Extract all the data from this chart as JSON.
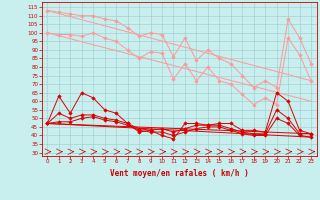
{
  "xlabel": "Vent moyen/en rafales ( km/h )",
  "xlim": [
    -0.5,
    23.5
  ],
  "ylim": [
    28,
    118
  ],
  "yticks": [
    30,
    35,
    40,
    45,
    50,
    55,
    60,
    65,
    70,
    75,
    80,
    85,
    90,
    95,
    100,
    105,
    110,
    115
  ],
  "xticks": [
    0,
    1,
    2,
    3,
    4,
    5,
    6,
    7,
    8,
    9,
    10,
    11,
    12,
    13,
    14,
    15,
    16,
    17,
    18,
    19,
    20,
    21,
    22,
    23
  ],
  "bg_color": "#c8eeee",
  "grid_color": "#99cccc",
  "pink_color": "#ff9999",
  "red_color": "#dd0000",
  "pink_line1_y": [
    113,
    112,
    111,
    110,
    110,
    108,
    107,
    103,
    98,
    100,
    99,
    86,
    97,
    84,
    90,
    85,
    82,
    75,
    68,
    72,
    68,
    108,
    97,
    82
  ],
  "pink_line2_y": [
    100,
    99,
    99,
    98,
    100,
    97,
    95,
    90,
    85,
    89,
    88,
    73,
    82,
    72,
    80,
    72,
    70,
    64,
    58,
    62,
    58,
    97,
    87,
    72
  ],
  "pink_trend1_y": [
    113,
    72
  ],
  "pink_trend2_y": [
    100,
    60
  ],
  "red_line1_y": [
    47,
    63,
    53,
    65,
    62,
    55,
    53,
    47,
    42,
    43,
    40,
    38,
    47,
    47,
    46,
    47,
    47,
    43,
    43,
    42,
    65,
    60,
    43,
    41
  ],
  "red_line2_y": [
    47,
    53,
    50,
    52,
    52,
    50,
    49,
    47,
    44,
    43,
    44,
    42,
    44,
    46,
    46,
    46,
    44,
    42,
    41,
    41,
    55,
    50,
    41,
    41
  ],
  "red_line3_y": [
    47,
    48,
    48,
    50,
    51,
    49,
    48,
    46,
    43,
    42,
    42,
    40,
    42,
    44,
    45,
    45,
    43,
    41,
    40,
    40,
    50,
    47,
    40,
    39
  ],
  "red_trend1_y": [
    47,
    41
  ],
  "red_trend2_y": [
    47,
    39
  ],
  "x": [
    0,
    1,
    2,
    3,
    4,
    5,
    6,
    7,
    8,
    9,
    10,
    11,
    12,
    13,
    14,
    15,
    16,
    17,
    18,
    19,
    20,
    21,
    22,
    23
  ]
}
